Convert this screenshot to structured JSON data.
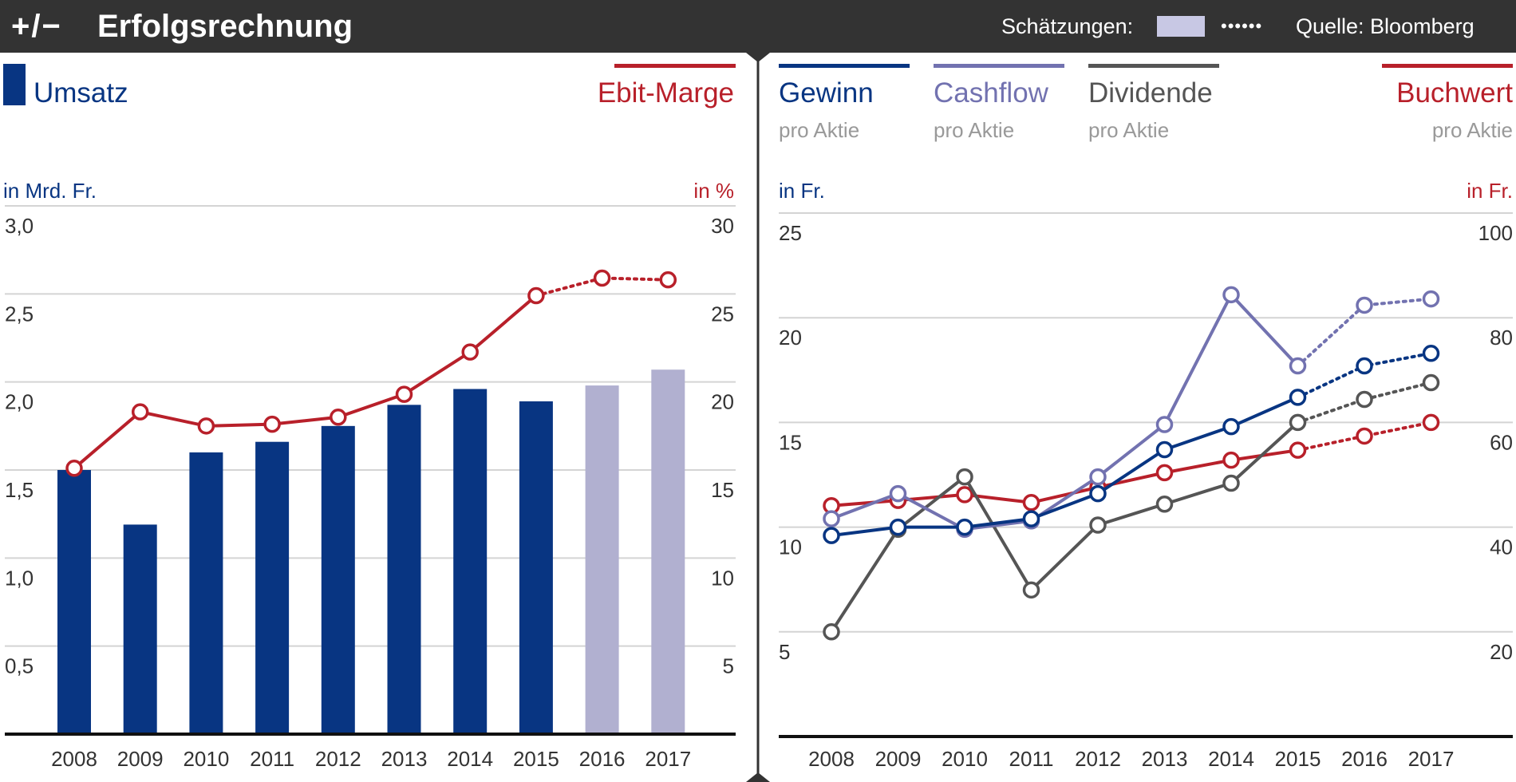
{
  "header": {
    "logo": "+/−",
    "title": "Erfolgsrechnung",
    "estimates_label": "Schätzungen:",
    "estimates_dots": "••••••",
    "source": "Quelle: Bloomberg"
  },
  "colors": {
    "umsatz": "#083582",
    "umsatz_estimate": "#b1b0d0",
    "ebit": "#b8202a",
    "gewinn": "#083582",
    "cashflow": "#7272b0",
    "dividende": "#555555",
    "buchwert": "#b8202a",
    "estimate_swatch": "#c8c8e4"
  },
  "chart_data": [
    {
      "type": "bar",
      "title": "Umsatz",
      "categories": [
        "2008",
        "2009",
        "2010",
        "2011",
        "2012",
        "2013",
        "2014",
        "2015",
        "2016",
        "2017"
      ],
      "series": [
        {
          "name": "Umsatz",
          "values": [
            1.5,
            1.19,
            1.6,
            1.66,
            1.75,
            1.87,
            1.96,
            1.89,
            1.98,
            2.07
          ],
          "estimate_from_index": 8,
          "axis": "left"
        },
        {
          "name": "Ebit-Marge",
          "type": "line",
          "values": [
            15.1,
            18.3,
            17.5,
            17.6,
            18.0,
            19.3,
            21.7,
            24.9,
            25.9,
            25.8
          ],
          "estimate_from_index": 7,
          "axis": "right"
        }
      ],
      "legend": {
        "bar_label": "Umsatz",
        "line_label": "Ebit-Marge"
      },
      "ylabel": "in Mrd. Fr.",
      "y2label": "in %",
      "ylim": [
        0,
        3.0
      ],
      "y2lim": [
        0,
        30
      ],
      "yticks": [
        "0,5",
        "1,0",
        "1,5",
        "2,0",
        "2,5",
        "3,0"
      ],
      "y2ticks": [
        "5",
        "10",
        "15",
        "20",
        "25",
        "30"
      ],
      "grid": true
    },
    {
      "type": "line",
      "categories": [
        "2008",
        "2009",
        "2010",
        "2011",
        "2012",
        "2013",
        "2014",
        "2015",
        "2016",
        "2017"
      ],
      "series": [
        {
          "name": "Gewinn",
          "sublabel": "pro Aktie",
          "axis": "left",
          "values": [
            9.6,
            10.0,
            10.0,
            10.4,
            11.6,
            13.7,
            14.8,
            16.2,
            17.7,
            18.3
          ],
          "estimate_from_index": 7
        },
        {
          "name": "Cashflow",
          "sublabel": "pro Aktie",
          "axis": "left",
          "values": [
            10.4,
            11.6,
            9.9,
            10.3,
            12.4,
            14.9,
            21.1,
            17.7,
            20.6,
            20.9
          ],
          "estimate_from_index": 7
        },
        {
          "name": "Dividende",
          "sublabel": "pro Aktie",
          "axis": "left",
          "values": [
            5.0,
            9.9,
            12.4,
            7.0,
            10.1,
            11.1,
            12.1,
            15.0,
            16.1,
            16.9
          ],
          "estimate_from_index": 7
        },
        {
          "name": "Buchwert",
          "sublabel": "pro Aktie",
          "axis": "right",
          "values": [
            44.1,
            45.1,
            46.2,
            44.7,
            47.6,
            50.4,
            52.8,
            54.7,
            57.4,
            60.0
          ],
          "estimate_from_index": 7
        }
      ],
      "ylabel": "in Fr.",
      "y2label": "in Fr.",
      "ylim": [
        0,
        25
      ],
      "y2lim": [
        0,
        100
      ],
      "yticks": [
        "5",
        "10",
        "15",
        "20",
        "25"
      ],
      "y2ticks": [
        "20",
        "40",
        "60",
        "80",
        "100"
      ],
      "grid": true
    }
  ]
}
